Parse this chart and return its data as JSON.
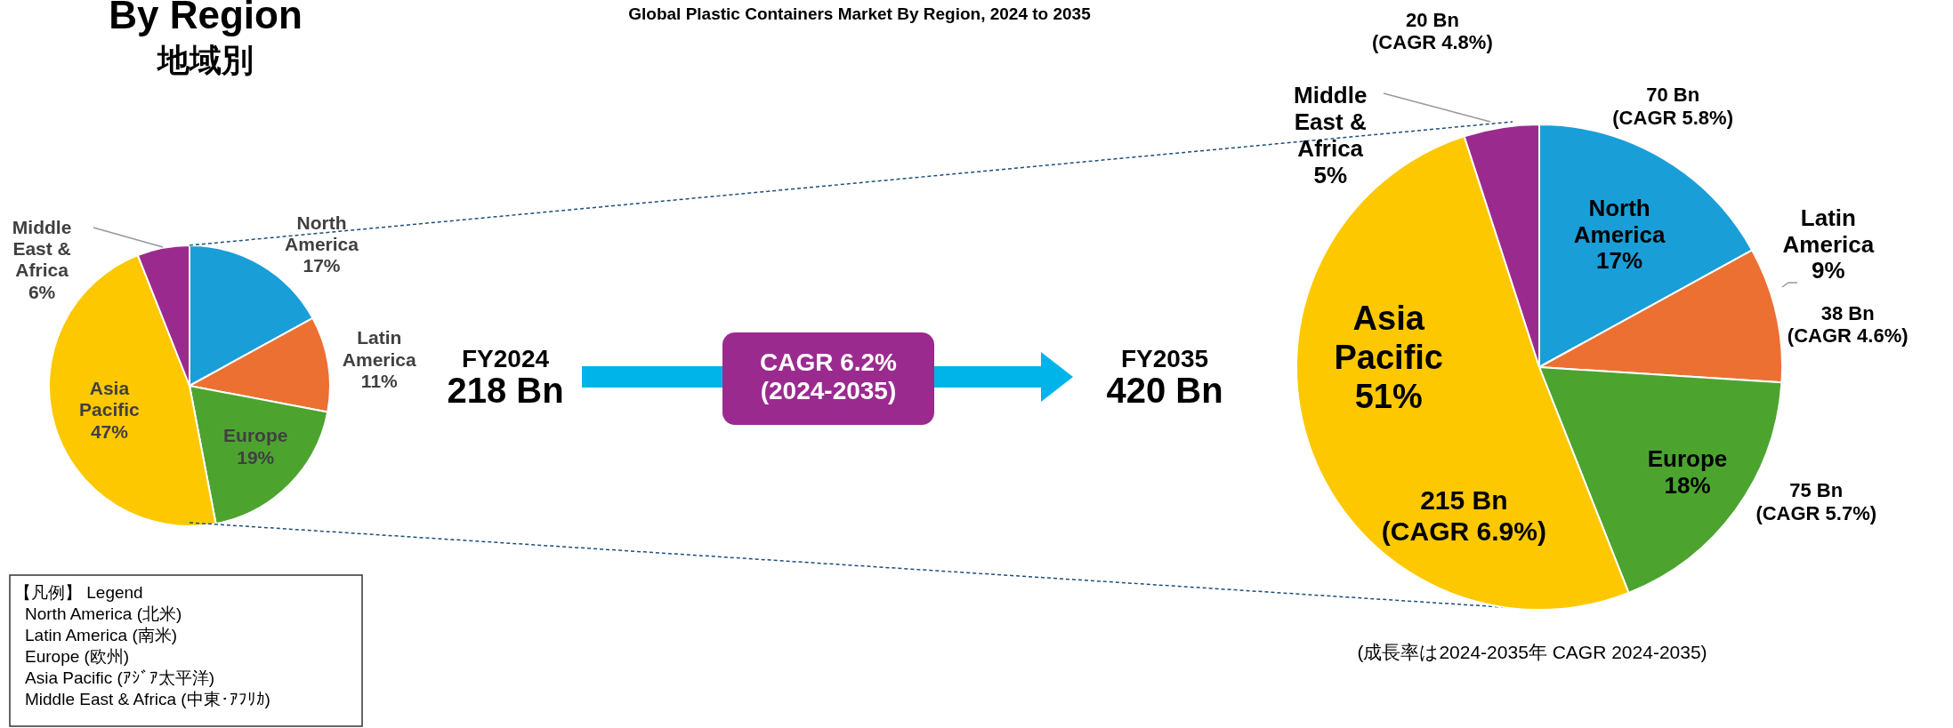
{
  "chart_data": [
    {
      "type": "pie",
      "title": "Global Plastic Containers Market By Region, 2024 to 2035",
      "subtitle": "By Region\n地域別",
      "categories": [
        "North America",
        "Latin America",
        "Europe",
        "Asia Pacific",
        "Middle East & Africa"
      ],
      "values": [
        17,
        11,
        19,
        47,
        6
      ],
      "colors": [
        "#1a9ed8",
        "#ec7032",
        "#4ca42f",
        "#fdc800",
        "#9b2a8f"
      ],
      "value_labels": [
        "17%",
        "11%",
        "19%",
        "47%",
        "6%"
      ],
      "annotations": [
        "FY2024",
        "218 Bn",
        "CAGR 6.2%\n(2024-2035)"
      ]
    },
    {
      "type": "pie",
      "categories": [
        "North America",
        "Latin America",
        "Europe",
        "Asia Pacific",
        "Middle East & Africa"
      ],
      "values": [
        17,
        9,
        18,
        51,
        5
      ],
      "colors": [
        "#1a9ed8",
        "#ec7032",
        "#4ca42f",
        "#fdc800",
        "#9b2a8f"
      ],
      "value_labels": [
        "17%",
        "9%",
        "18%",
        "51%",
        "5%"
      ],
      "annotations": [
        "FY2035",
        "420 Bn",
        "70 Bn\n(CAGR 5.8%)",
        "38 Bn\n(CAGR 4.6%)",
        "75 Bn\n(CAGR 5.7%)",
        "215 Bn\n(CAGR 6.9%)",
        "20 Bn\n(CAGR 4.8%)",
        "(成長率は2024-2035年 CAGR 2024-2035)"
      ]
    },
    {
      "type": "other",
      "title": "【凡例】 Legend",
      "annotations": [
        "North America (北米)",
        "Latin America (南米)",
        "Europe (欧州)",
        "Asia Pacific (ｱｼﾞｱ太平洋)",
        "Middle East & Africa (中東･ｱﾌﾘｶ)"
      ]
    }
  ]
}
